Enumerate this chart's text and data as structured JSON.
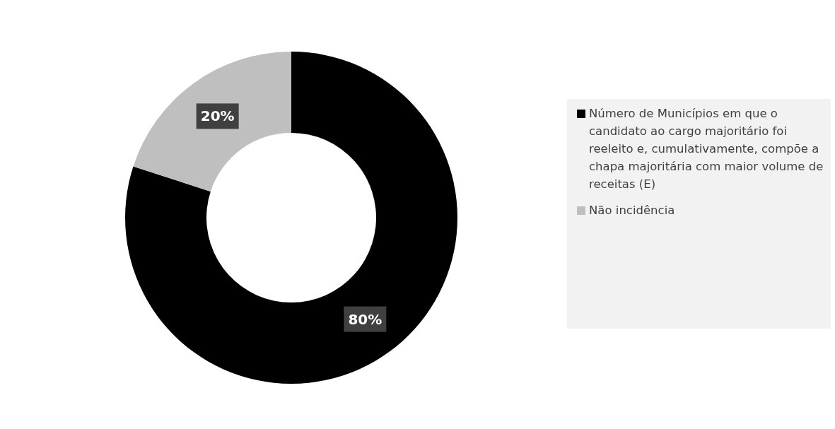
{
  "chart_data": {
    "type": "donut",
    "categories": [
      "Número de  Municípios em que o candidato ao cargo majoritário foi reeleito e, cumulativamente, compõe a chapa majoritária com maior volume de receitas (E)",
      "Não incidência"
    ],
    "values": [
      80,
      20
    ],
    "colors": [
      "#000000",
      "#bfbfbf"
    ],
    "value_labels": [
      "80%",
      "20%"
    ],
    "legend": "right"
  }
}
